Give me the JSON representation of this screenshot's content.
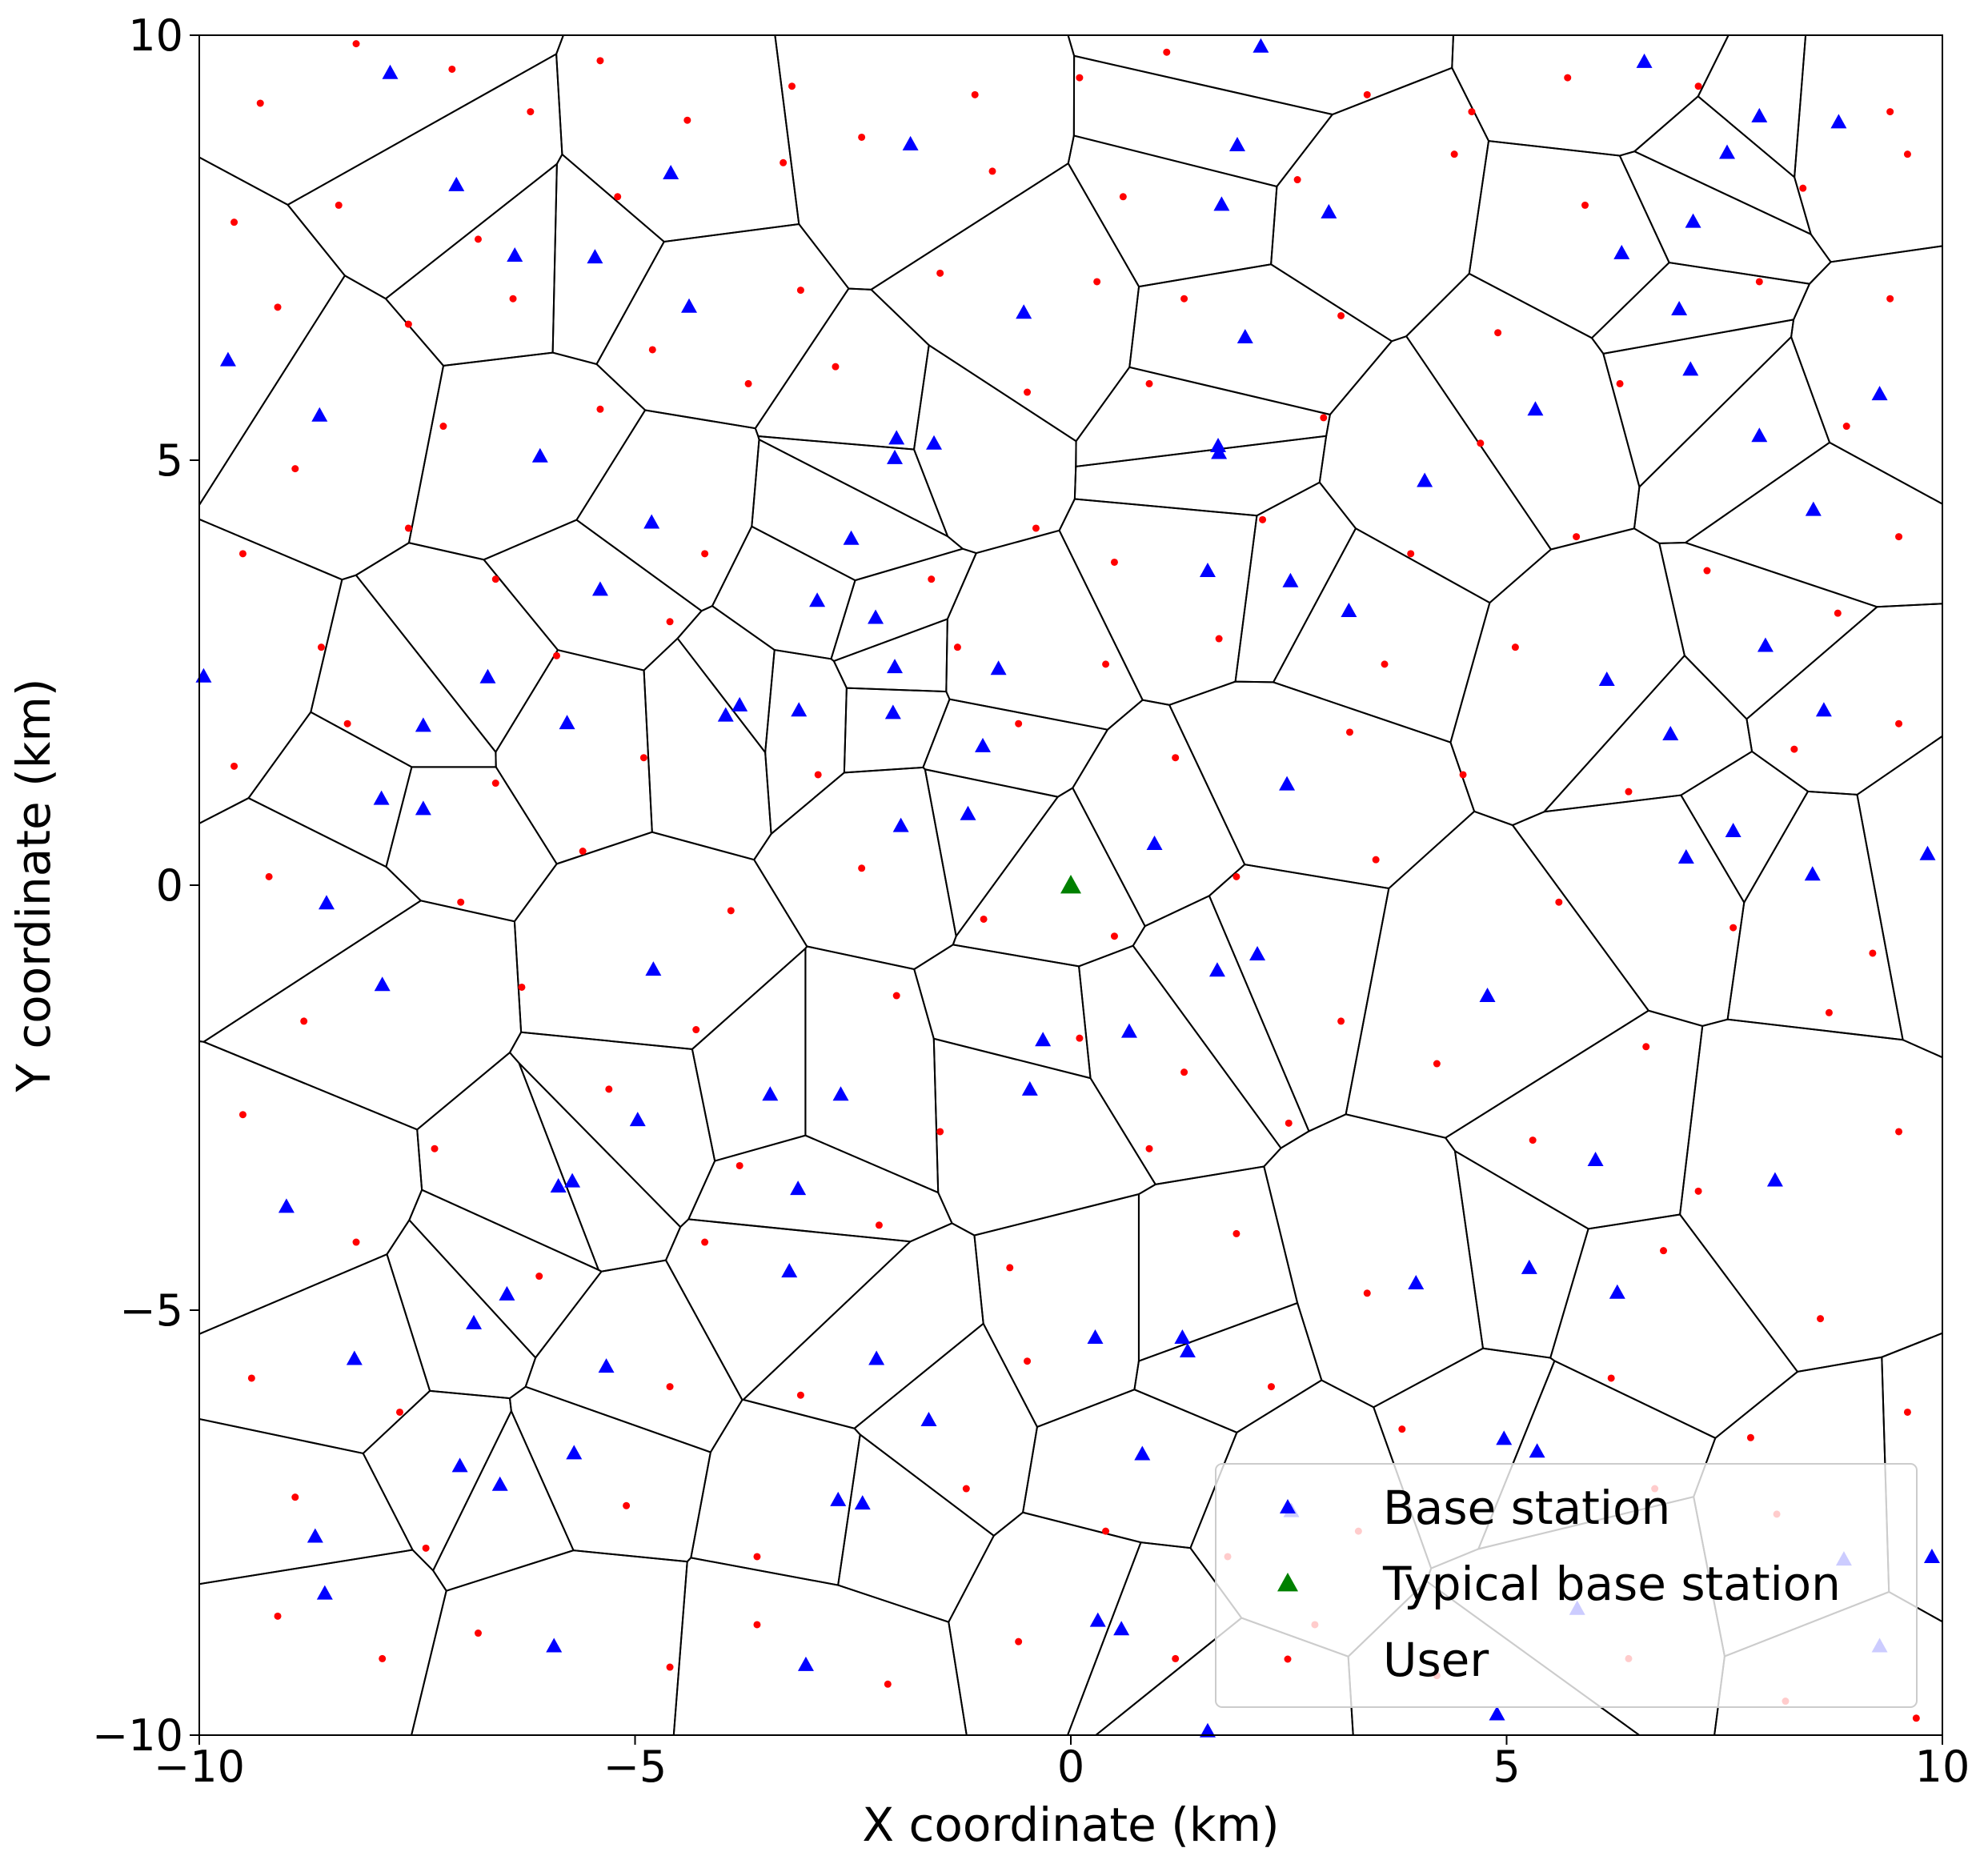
{
  "chart_data": {
    "type": "scatter",
    "xlabel": "X coordinate (km)",
    "ylabel": "Y coordinate (km)",
    "xlim": [
      -10,
      10
    ],
    "ylim": [
      -10,
      10
    ],
    "xticks": [
      {
        "value": -10,
        "label": "−10"
      },
      {
        "value": -5,
        "label": "−5"
      },
      0,
      5,
      10
    ],
    "yticks": [
      {
        "value": -10,
        "label": "−10"
      },
      {
        "value": -5,
        "label": "−5"
      },
      0,
      5,
      10
    ],
    "voronoi": true,
    "legend": "lower right",
    "series": [
      {
        "name": "Base station",
        "color": "#0000ff",
        "marker": "triangle",
        "x": [
          -7.81,
          2.18,
          6.58,
          -1.84,
          -7.05,
          -4.59,
          1.91,
          7.9,
          8.81,
          7.53,
          -6.38,
          -5.46,
          1.73,
          2.96,
          7.14,
          -4.38,
          6.32,
          -0.54,
          6.98,
          -9.67,
          -8.62,
          2.0,
          7.11,
          9.28,
          -6.09,
          -2.0,
          -2.02,
          -1.57,
          1.69,
          1.7,
          5.33,
          7.9,
          4.06,
          -4.81,
          8.52,
          -2.52,
          1.57,
          2.52,
          -5.4,
          -2.91,
          -2.24,
          3.19,
          -9.95,
          -6.69,
          -2.02,
          -0.83,
          7.97,
          6.15,
          -7.43,
          -5.78,
          -3.8,
          -3.96,
          -3.12,
          -2.04,
          8.64,
          6.88,
          -1.01,
          -7.91,
          -7.43,
          -1.18,
          -1.95,
          2.48,
          7.6,
          0.96,
          7.06,
          9.83,
          8.51,
          -8.54,
          -4.79,
          -7.9,
          2.14,
          1.68,
          4.78,
          -0.32,
          0.67,
          -3.45,
          -2.64,
          -0.47,
          -4.97,
          6.02,
          8.08,
          -9.0,
          -5.88,
          -5.72,
          -3.13,
          3.96,
          5.26,
          -3.23,
          6.27,
          -6.47,
          -6.85,
          0.28,
          1.28,
          1.34,
          -8.22,
          -2.23,
          -5.33,
          -1.63,
          4.97,
          5.35,
          -5.7,
          0.82,
          -7.01,
          -6.55,
          -2.67,
          -2.39,
          2.53,
          -8.67,
          9.88,
          8.87,
          -8.56,
          5.81,
          0.31,
          0.58,
          9.28,
          -5.93,
          -3.04,
          4.89,
          1.57
        ],
        "values": [
          9.56,
          9.87,
          9.69,
          8.72,
          8.24,
          8.38,
          8.71,
          9.05,
          8.98,
          8.62,
          7.41,
          7.39,
          8.01,
          7.92,
          7.81,
          6.81,
          7.44,
          6.74,
          6.78,
          6.18,
          5.53,
          6.45,
          6.07,
          5.78,
          5.05,
          5.26,
          5.03,
          5.2,
          5.17,
          5.09,
          5.6,
          5.29,
          4.76,
          4.27,
          4.42,
          4.08,
          3.7,
          3.58,
          3.48,
          3.35,
          3.15,
          3.23,
          2.46,
          2.45,
          2.57,
          2.55,
          2.82,
          2.42,
          1.88,
          1.91,
          2.12,
          2.0,
          2.06,
          2.03,
          2.06,
          1.78,
          1.64,
          1.02,
          0.9,
          0.84,
          0.7,
          1.19,
          0.64,
          0.49,
          0.33,
          0.37,
          0.13,
          -0.21,
          -0.99,
          -1.17,
          -0.81,
          -1.0,
          -1.3,
          -1.82,
          -1.72,
          -2.46,
          -2.46,
          -2.4,
          -2.76,
          -3.23,
          -3.47,
          -3.78,
          -3.54,
          -3.48,
          -3.57,
          -4.68,
          -4.5,
          -4.54,
          -4.79,
          -4.81,
          -5.15,
          -5.32,
          -5.32,
          -5.48,
          -5.57,
          -5.57,
          -5.66,
          -6.29,
          -6.51,
          -6.66,
          -6.68,
          -6.69,
          -6.83,
          -7.05,
          -7.23,
          -7.27,
          -7.36,
          -7.66,
          -7.9,
          -7.93,
          -8.33,
          -8.51,
          -8.65,
          -8.75,
          -8.95,
          -8.95,
          -9.17,
          -9.75,
          -9.95
        ]
      },
      {
        "name": "Typical base station",
        "color": "#008000",
        "marker": "triangle",
        "x": [
          0
        ],
        "values": [
          0
        ]
      },
      {
        "name": "User",
        "color": "#ff0000",
        "marker": "dot",
        "x": [
          -9.3,
          -8.2,
          -7.1,
          -6.2,
          -5.4,
          -4.4,
          -3.2,
          -2.4,
          -1.1,
          0.1,
          1.1,
          3.4,
          4.6,
          5.7,
          7.2,
          9.4,
          -9.6,
          -8.4,
          -6.8,
          -5.2,
          -3.3,
          -0.9,
          0.6,
          2.6,
          4.4,
          5.9,
          8.4,
          9.6,
          -9.1,
          -7.6,
          -6.4,
          -4.8,
          -3.1,
          -1.5,
          0.3,
          1.3,
          3.1,
          4.9,
          7.9,
          9.4,
          -8.9,
          -7.2,
          -5.4,
          -3.7,
          -2.7,
          -0.5,
          0.9,
          2.9,
          4.7,
          6.3,
          8.9,
          -9.5,
          -7.6,
          -6.6,
          -4.2,
          -1.6,
          -0.4,
          0.5,
          2.2,
          3.9,
          5.8,
          7.3,
          9.5,
          -8.6,
          -5.9,
          -4.6,
          -1.3,
          0.4,
          1.7,
          3.6,
          5.1,
          8.8,
          -9.6,
          -8.3,
          -6.6,
          -4.9,
          -2.9,
          -0.6,
          1.2,
          3.2,
          4.5,
          6.4,
          8.3,
          9.5,
          -9.2,
          -7.0,
          -5.6,
          -3.9,
          -2.4,
          -1.0,
          0.5,
          1.9,
          3.5,
          5.6,
          7.6,
          9.2,
          -8.8,
          -6.3,
          -4.3,
          -2.0,
          0.1,
          1.3,
          3.1,
          4.2,
          6.6,
          8.7,
          -9.5,
          -7.3,
          -5.3,
          -3.8,
          -1.5,
          0.9,
          2.5,
          5.3,
          7.2,
          9.5,
          -8.2,
          -6.1,
          -4.2,
          -2.2,
          -0.7,
          1.9,
          3.4,
          6.8,
          8.6,
          -9.4,
          -7.7,
          -4.6,
          -3.1,
          -0.5,
          2.3,
          3.8,
          6.2,
          7.8,
          9.6,
          -8.9,
          -7.4,
          -5.1,
          -3.6,
          -1.2,
          0.4,
          1.8,
          3.3,
          6.7,
          8.1,
          -9.1,
          -7.9,
          -6.8,
          -4.6,
          -3.6,
          -2.1,
          -0.6,
          1.2,
          2.8,
          4.2,
          6.4,
          8.2,
          9.7
        ],
        "values": [
          9.2,
          9.9,
          9.6,
          9.1,
          9.7,
          9.0,
          9.4,
          8.8,
          9.3,
          9.5,
          9.8,
          9.3,
          9.1,
          9.5,
          9.4,
          9.1,
          7.8,
          8.0,
          7.6,
          8.1,
          8.5,
          8.4,
          8.1,
          8.3,
          8.6,
          8.0,
          8.2,
          8.6,
          6.8,
          6.6,
          6.9,
          6.3,
          7.0,
          7.2,
          7.1,
          6.9,
          6.7,
          6.5,
          7.1,
          6.9,
          4.9,
          5.4,
          5.6,
          5.9,
          6.1,
          5.8,
          5.9,
          5.5,
          5.2,
          5.9,
          5.4,
          3.9,
          4.2,
          3.6,
          3.9,
          3.6,
          4.2,
          3.8,
          4.3,
          3.9,
          4.1,
          3.7,
          4.1,
          2.8,
          2.7,
          3.1,
          2.8,
          2.6,
          2.9,
          2.6,
          2.8,
          3.2,
          1.4,
          1.9,
          1.2,
          1.5,
          1.3,
          1.9,
          1.5,
          1.8,
          1.3,
          1.1,
          1.6,
          1.9,
          0.1,
          -0.2,
          0.4,
          -0.3,
          0.2,
          -0.4,
          -0.6,
          0.1,
          0.3,
          -0.2,
          -0.5,
          -0.8,
          -1.6,
          -1.2,
          -1.7,
          -1.3,
          -1.8,
          -2.2,
          -1.6,
          -2.1,
          -1.9,
          -1.5,
          -2.7,
          -3.1,
          -2.4,
          -3.3,
          -2.9,
          -3.1,
          -2.8,
          -3.0,
          -3.6,
          -2.9,
          -4.2,
          -4.6,
          -4.2,
          -4.0,
          -4.5,
          -4.1,
          -4.8,
          -4.3,
          -5.1,
          -5.8,
          -6.2,
          -5.9,
          -6.0,
          -5.6,
          -5.9,
          -6.4,
          -5.8,
          -6.5,
          -6.2,
          -7.2,
          -7.8,
          -7.3,
          -7.9,
          -7.1,
          -7.6,
          -7.9,
          -7.6,
          -7.1,
          -7.4,
          -8.6,
          -9.1,
          -8.8,
          -9.2,
          -8.7,
          -9.4,
          -8.9,
          -9.1,
          -8.7,
          -9.3,
          -9.1,
          -9.6,
          -9.8
        ]
      }
    ]
  }
}
